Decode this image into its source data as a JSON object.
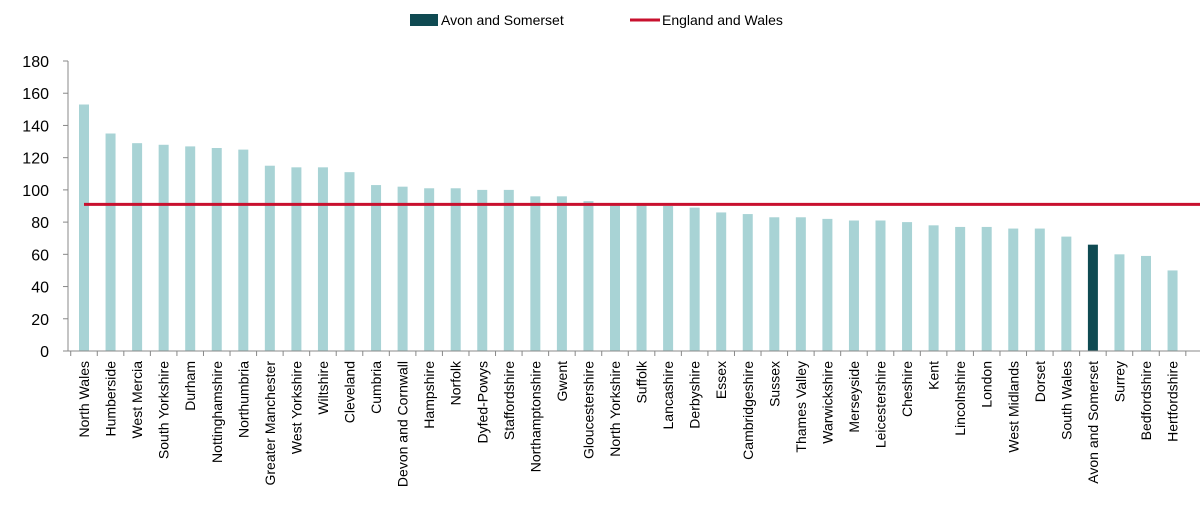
{
  "chart_data": {
    "type": "bar",
    "categories": [
      "North Wales",
      "Humberside",
      "West Mercia",
      "South Yorkshire",
      "Durham",
      "Nottinghamshire",
      "Northumbria",
      "Greater Manchester",
      "West Yorkshire",
      "Wiltshire",
      "Cleveland",
      "Cumbria",
      "Devon and Cornwall",
      "Hampshire",
      "Norfolk",
      "Dyfed-Powys",
      "Staffordshire",
      "Northamptonshire",
      "Gwent",
      "Gloucestershire",
      "North Yorkshire",
      "Suffolk",
      "Lancashire",
      "Derbyshire",
      "Essex",
      "Cambridgeshire",
      "Sussex",
      "Thames Valley",
      "Warwickshire",
      "Merseyside",
      "Leicestershire",
      "Cheshire",
      "Kent",
      "Lincolnshire",
      "London",
      "West Midlands",
      "Dorset",
      "South Wales",
      "Avon and Somerset",
      "Surrey",
      "Bedfordshire",
      "Hertfordshire"
    ],
    "values": [
      153,
      135,
      129,
      128,
      127,
      126,
      125,
      115,
      114,
      114,
      111,
      103,
      102,
      101,
      101,
      100,
      100,
      96,
      96,
      93,
      91,
      91,
      90,
      89,
      86,
      85,
      83,
      83,
      82,
      81,
      81,
      80,
      78,
      77,
      77,
      76,
      76,
      71,
      66,
      60,
      59,
      50
    ],
    "highlight_category": "Avon and Somerset",
    "series": [
      {
        "name": "Avon and Somerset",
        "color": "#0f4a52",
        "kind": "bar"
      },
      {
        "name": "England and Wales",
        "color": "#c8102e",
        "kind": "line",
        "value": 91
      }
    ],
    "bar_color": "#a8d3d5",
    "ylim": [
      0,
      180
    ],
    "yticks": [
      0,
      20,
      40,
      60,
      80,
      100,
      120,
      140,
      160,
      180
    ],
    "title": "",
    "xlabel": "",
    "ylabel": "",
    "legend_position": "top-center",
    "grid": false
  }
}
